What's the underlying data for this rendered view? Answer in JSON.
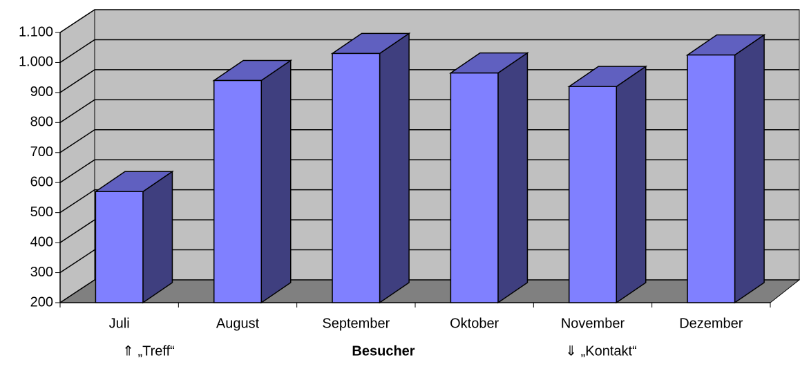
{
  "chart_data": {
    "type": "bar3d",
    "categories": [
      "Juli",
      "August",
      "September",
      "Oktober",
      "November",
      "Dezember"
    ],
    "values": [
      570,
      940,
      1030,
      965,
      920,
      1025
    ],
    "color": "#8080ff",
    "ylim": [
      200,
      1100
    ],
    "yticks": [
      200,
      300,
      400,
      500,
      600,
      700,
      800,
      900,
      {
        "value": 1000,
        "label": "1.000"
      },
      {
        "value": 1100,
        "label": "1.100"
      }
    ],
    "grid": true,
    "x_label": "Besucher",
    "annotations": [
      "⇑ „Treff“",
      "⇓ „Kontakt“"
    ]
  }
}
